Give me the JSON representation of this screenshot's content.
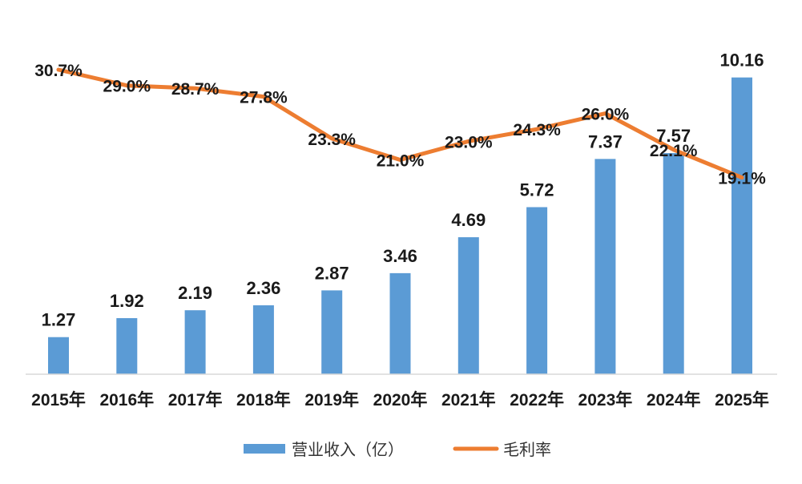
{
  "chart_data": {
    "type": "bar",
    "categories": [
      "2015年",
      "2016年",
      "2017年",
      "2018年",
      "2019年",
      "2020年",
      "2021年",
      "2022年",
      "2023年",
      "2024年",
      "2025年"
    ],
    "series": [
      {
        "name": "营业收入（亿）",
        "type": "bar",
        "color": "#5B9BD5",
        "values": [
          1.27,
          1.92,
          2.19,
          2.36,
          2.87,
          3.46,
          4.69,
          5.72,
          7.37,
          7.57,
          10.16
        ],
        "labels": [
          "1.27",
          "1.92",
          "2.19",
          "2.36",
          "2.87",
          "3.46",
          "4.69",
          "5.72",
          "7.37",
          "7.57",
          "10.16"
        ]
      },
      {
        "name": "毛利率",
        "type": "line",
        "color": "#ED7D31",
        "values": [
          30.7,
          29.0,
          28.7,
          27.8,
          23.3,
          21.0,
          23.0,
          24.3,
          26.0,
          22.1,
          19.1
        ],
        "labels": [
          "30.7%",
          "29.0%",
          "28.7%",
          "27.8%",
          "23.3%",
          "21.0%",
          "23.0%",
          "24.3%",
          "26.0%",
          "22.1%",
          "19.1%"
        ]
      }
    ],
    "title": "",
    "xlabel": "",
    "ylabel": "",
    "grid": false,
    "legend_placement": "bottom"
  }
}
